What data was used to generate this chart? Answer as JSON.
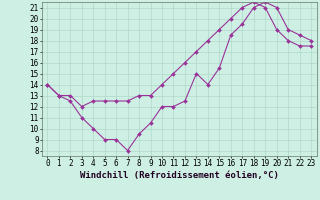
{
  "xlabel": "Windchill (Refroidissement éolien,°C)",
  "background_color": "#cef0e4",
  "line_color": "#993399",
  "xlim": [
    -0.5,
    23.5
  ],
  "ylim": [
    7.5,
    21.5
  ],
  "xticks": [
    0,
    1,
    2,
    3,
    4,
    5,
    6,
    7,
    8,
    9,
    10,
    11,
    12,
    13,
    14,
    15,
    16,
    17,
    18,
    19,
    20,
    21,
    22,
    23
  ],
  "yticks": [
    8,
    9,
    10,
    11,
    12,
    13,
    14,
    15,
    16,
    17,
    18,
    19,
    20,
    21
  ],
  "line1_x": [
    0,
    1,
    2,
    3,
    4,
    5,
    6,
    7,
    8,
    9,
    10,
    11,
    12,
    13,
    14,
    15,
    16,
    17,
    18,
    19,
    20,
    21,
    22,
    23
  ],
  "line1_y": [
    14,
    13,
    12.5,
    11,
    10,
    9,
    9,
    8,
    9.5,
    10.5,
    12,
    12,
    12.5,
    15,
    14,
    15.5,
    18.5,
    19.5,
    21,
    21.5,
    21,
    19,
    18.5,
    18
  ],
  "line2_x": [
    0,
    1,
    2,
    3,
    4,
    5,
    6,
    7,
    8,
    9,
    10,
    11,
    12,
    13,
    14,
    15,
    16,
    17,
    18,
    19,
    20,
    21,
    22,
    23
  ],
  "line2_y": [
    14,
    13,
    13,
    12,
    12.5,
    12.5,
    12.5,
    12.5,
    13,
    13,
    14,
    15,
    16,
    17,
    18,
    19,
    20,
    21,
    21.5,
    21,
    19,
    18,
    17.5,
    17.5
  ],
  "grid_color": "#b0d8c8",
  "tick_fontsize": 5.5,
  "xlabel_fontsize": 6.5
}
